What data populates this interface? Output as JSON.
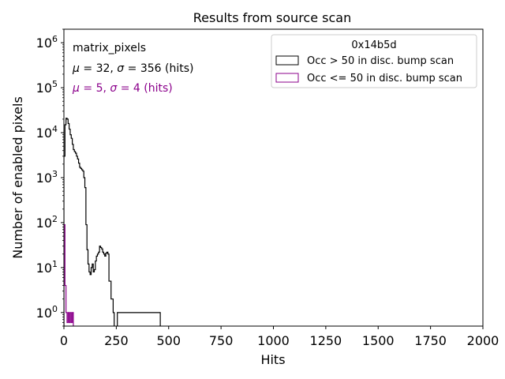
{
  "chart_data": {
    "type": "histogram",
    "title": "Results from source scan",
    "xlabel": "Hits",
    "ylabel": "Number of enabled pixels",
    "xlim": [
      0,
      2000
    ],
    "ylim": [
      0.5,
      2000000
    ],
    "yscale": "log",
    "xticks": [
      0,
      250,
      500,
      750,
      1000,
      1250,
      1500,
      1750,
      2000
    ],
    "xtick_labels": [
      "0",
      "250",
      "500",
      "750",
      "1000",
      "1250",
      "1500",
      "1750",
      "2000"
    ],
    "yticks": [
      1,
      10,
      100,
      1000,
      10000,
      100000,
      1000000
    ],
    "ytick_labels": [
      {
        "base": "10",
        "exp": "0"
      },
      {
        "base": "10",
        "exp": "1"
      },
      {
        "base": "10",
        "exp": "2"
      },
      {
        "base": "10",
        "exp": "3"
      },
      {
        "base": "10",
        "exp": "4"
      },
      {
        "base": "10",
        "exp": "5"
      },
      {
        "base": "10",
        "exp": "6"
      }
    ],
    "info_text": {
      "title": "matrix_pixels",
      "stats_black": {
        "mu": "32",
        "sigma": "356",
        "units": "(hits)"
      },
      "stats_purple": {
        "mu": "5",
        "sigma": "4",
        "units": "(hits)"
      }
    },
    "legend": {
      "title": "0x14b5d",
      "location": "upper right",
      "entries": [
        "Occ > 50 in disc. bump scan",
        "Occ <= 50 in disc. bump scan"
      ]
    },
    "series": [
      {
        "name": "Occ > 50 in disc. bump scan",
        "color": "#000000",
        "bin_edges": [
          0,
          5,
          10,
          15,
          20,
          25,
          30,
          35,
          40,
          45,
          50,
          55,
          60,
          65,
          70,
          75,
          80,
          85,
          90,
          95,
          100,
          105,
          110,
          115,
          120,
          125,
          130,
          135,
          140,
          145,
          150,
          155,
          160,
          165,
          170,
          175,
          180,
          185,
          190,
          195,
          200,
          205,
          210,
          215,
          220,
          225,
          230,
          235,
          240,
          245,
          250,
          255,
          460,
          465,
          470,
          475
        ],
        "counts": [
          3000,
          15000,
          21000,
          20000,
          16000,
          12000,
          9000,
          7500,
          5500,
          4200,
          3800,
          3500,
          3000,
          2600,
          2100,
          1700,
          1600,
          1500,
          1400,
          1000,
          600,
          90,
          25,
          12,
          8,
          7,
          10,
          12,
          8,
          9,
          14,
          18,
          20,
          22,
          30,
          28,
          26,
          22,
          20,
          18,
          21,
          22,
          20,
          5,
          5,
          2,
          2,
          1,
          0,
          0,
          0,
          1,
          0,
          0,
          0
        ]
      },
      {
        "name": "Occ <= 50 in disc. bump scan",
        "color": "#8b008b",
        "bin_edges": [
          0,
          5,
          10,
          15,
          20,
          25,
          30,
          35,
          40,
          45,
          50,
          55
        ],
        "counts": [
          90,
          4,
          1,
          0.6,
          1,
          0.6,
          1,
          0.6,
          1,
          0,
          0
        ]
      }
    ]
  }
}
